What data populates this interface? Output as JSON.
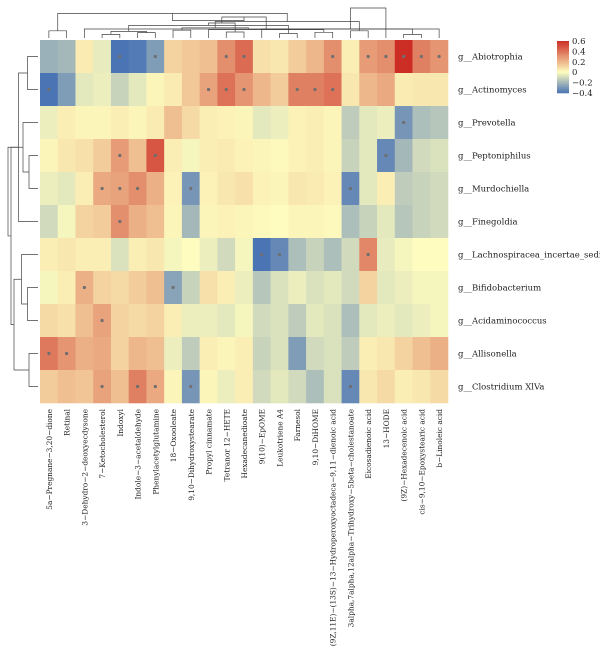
{
  "chart_data": {
    "type": "heatmap",
    "title": "",
    "xlabel": "",
    "ylabel": "",
    "columns": [
      "5a−Pregnane−3,20−dione",
      "Retinal",
      "3−Dehydro−2−deoxyecdysone",
      "7−Ketocholesterol",
      "Indoxyl",
      "Indole−3−acetaldehyde",
      "Phenylacetylglutamine",
      "18−Oxooleate",
      "9,10−Dihydroxystearate",
      "Propyl cinnamate",
      "Tetranor 12−HETE",
      "Hexadecanedioate",
      "9(10)−EpOME",
      "Leukotriene A4",
      "Farnesol",
      "9,10−DiHOME",
      "(9Z,11E)−(13S)−13−Hydroperoxyoctadeca−9,11−dienoic acid",
      "3alpha,7alpha,12alpha−Trihydroxy−5beta−cholestanoate",
      "Eicosadienoic acid",
      "13−HODE",
      "(9Z)−Hexadecenoic acid",
      "cis−9,10−Epoxystearic acid",
      "b−Linoleic acid"
    ],
    "rows": [
      "g__Abiotrophia",
      "g__Actinomyces",
      "g__Prevotella",
      "g__Peptoniphilus",
      "g__Murdochiella",
      "g__Finegoldia",
      "g__Lachnospiracea_incertae_sedis",
      "g__Bifidobacterium",
      "g__Acidaminococcus",
      "g__Allisonella",
      "g__Clostridium XlVa"
    ],
    "values": [
      [
        -0.22,
        -0.2,
        0.05,
        -0.05,
        -0.48,
        -0.38,
        -0.28,
        0.12,
        0.15,
        0.18,
        0.32,
        0.42,
        0.08,
        0.06,
        0.14,
        0.2,
        0.32,
        0.04,
        0.28,
        0.32,
        0.62,
        0.36,
        0.3
      ],
      [
        -0.42,
        -0.28,
        -0.06,
        -0.04,
        -0.12,
        -0.06,
        0.02,
        0.05,
        0.15,
        0.26,
        0.4,
        0.3,
        0.2,
        0.14,
        0.36,
        0.36,
        0.4,
        0.06,
        0.2,
        0.24,
        0.05,
        0.06,
        0.06
      ],
      [
        -0.04,
        0.04,
        0.02,
        0.02,
        0.04,
        0.02,
        0.05,
        0.18,
        0.1,
        0.04,
        0.03,
        0.02,
        -0.06,
        -0.04,
        0.03,
        0.04,
        0.02,
        -0.14,
        -0.06,
        -0.04,
        -0.3,
        -0.18,
        -0.16
      ],
      [
        0.02,
        0.06,
        0.08,
        0.14,
        0.28,
        0.18,
        0.48,
        0.04,
        -0.02,
        0.04,
        0.05,
        0.03,
        0.02,
        0.01,
        0.03,
        0.04,
        0.02,
        -0.12,
        -0.06,
        -0.34,
        -0.2,
        -0.1,
        -0.08
      ],
      [
        -0.04,
        -0.06,
        0.04,
        0.24,
        0.26,
        0.32,
        0.22,
        0.03,
        -0.3,
        0.03,
        0.06,
        0.08,
        0.03,
        0.02,
        0.06,
        0.05,
        0.03,
        -0.34,
        -0.06,
        0.04,
        -0.14,
        -0.12,
        -0.1
      ],
      [
        -0.1,
        -0.02,
        0.12,
        0.14,
        0.32,
        0.22,
        0.18,
        0.02,
        -0.2,
        0.02,
        0.03,
        0.02,
        0.01,
        0.0,
        0.02,
        0.02,
        0.01,
        -0.18,
        -0.12,
        -0.06,
        -0.16,
        -0.12,
        -0.1
      ],
      [
        0.04,
        0.06,
        0.04,
        0.04,
        -0.08,
        0.04,
        0.06,
        -0.02,
        0.0,
        -0.04,
        -0.1,
        -0.02,
        -0.42,
        -0.34,
        -0.18,
        -0.12,
        -0.18,
        -0.1,
        0.34,
        -0.05,
        -0.02,
        0.0,
        0.0
      ],
      [
        -0.02,
        0.04,
        0.22,
        0.12,
        0.1,
        0.14,
        0.18,
        -0.26,
        -0.12,
        0.08,
        0.04,
        -0.04,
        -0.16,
        -0.08,
        -0.04,
        -0.08,
        -0.06,
        -0.1,
        0.12,
        -0.06,
        -0.04,
        -0.02,
        -0.02
      ],
      [
        0.1,
        0.08,
        0.18,
        0.26,
        0.12,
        0.1,
        0.12,
        0.04,
        -0.04,
        -0.04,
        -0.06,
        -0.02,
        -0.1,
        -0.08,
        -0.14,
        -0.06,
        -0.08,
        -0.18,
        -0.06,
        -0.04,
        -0.06,
        -0.04,
        -0.02
      ],
      [
        0.38,
        0.3,
        0.22,
        0.24,
        0.12,
        0.2,
        0.18,
        -0.04,
        -0.14,
        0.04,
        0.02,
        0.04,
        -0.12,
        -0.08,
        -0.28,
        -0.1,
        -0.08,
        -0.14,
        0.04,
        0.06,
        0.12,
        0.18,
        0.22
      ],
      [
        0.14,
        0.18,
        0.16,
        0.26,
        0.18,
        0.36,
        0.24,
        0.02,
        -0.3,
        0.02,
        -0.04,
        0.04,
        -0.1,
        -0.06,
        -0.1,
        -0.18,
        -0.08,
        -0.34,
        0.06,
        0.1,
        0.04,
        0.06,
        0.1
      ]
    ],
    "significant": [
      [
        4,
        6,
        10,
        11,
        16,
        18,
        19,
        20,
        21,
        22
      ],
      [
        0,
        9,
        10,
        11,
        14,
        15,
        16
      ],
      [
        20
      ],
      [
        4,
        6,
        19
      ],
      [
        3,
        4,
        5,
        8,
        17
      ],
      [
        4
      ],
      [
        12,
        13,
        18
      ],
      [
        2,
        7
      ],
      [
        3
      ],
      [
        0,
        1
      ],
      [
        3,
        5,
        6,
        8,
        17
      ]
    ],
    "scale": {
      "min": -0.4,
      "max": 0.6,
      "ticks": [
        "0.6",
        "0.4",
        "0.2",
        "0",
        "−0.2",
        "−0.4"
      ],
      "tick_values": [
        0.6,
        0.4,
        0.2,
        0,
        -0.2,
        -0.4
      ]
    },
    "colors": {
      "low": "#4a74b4",
      "mid": "#fefcbf",
      "high": "#cc2d24",
      "marker": "#6f6f6f"
    },
    "grid": false,
    "legend": "top-right colorbar",
    "col_dendrogram": [
      [
        3,
        4
      ],
      [
        5,
        6
      ],
      [
        20,
        21
      ],
      [
        13,
        14
      ],
      [
        23,
        24
      ],
      [
        0,
        1
      ],
      [
        2,
        25
      ],
      [
        7,
        8
      ],
      [
        26,
        27
      ],
      [
        10,
        11
      ],
      [
        15,
        16
      ],
      [
        17,
        18
      ],
      [
        29,
        30
      ],
      [
        31,
        32
      ],
      [
        9,
        33
      ],
      [
        34,
        35
      ],
      [
        36,
        37
      ],
      [
        28,
        38
      ],
      [
        12,
        22
      ],
      [
        39,
        40
      ],
      [
        19,
        41
      ]
    ],
    "col_dendrogram_heights": [
      0.12,
      0.18,
      0.12,
      0.15,
      0.22,
      0.24,
      0.3,
      0.26,
      0.42,
      0.2,
      0.19,
      0.24,
      0.34,
      0.5,
      0.28,
      0.55,
      0.7,
      0.82,
      0.3,
      0.58,
      1.0
    ],
    "row_dendrogram": [
      [
        3,
        4
      ],
      [
        2,
        11
      ],
      [
        0,
        1
      ],
      [
        5,
        13
      ],
      [
        9,
        10
      ],
      [
        7,
        8
      ],
      [
        6,
        16
      ],
      [
        15,
        17
      ],
      [
        14,
        18
      ],
      [
        12,
        19
      ]
    ],
    "row_dendrogram_heights": [
      0.3,
      0.5,
      0.35,
      0.65,
      0.3,
      0.35,
      0.55,
      0.8,
      0.9,
      1.0
    ]
  }
}
